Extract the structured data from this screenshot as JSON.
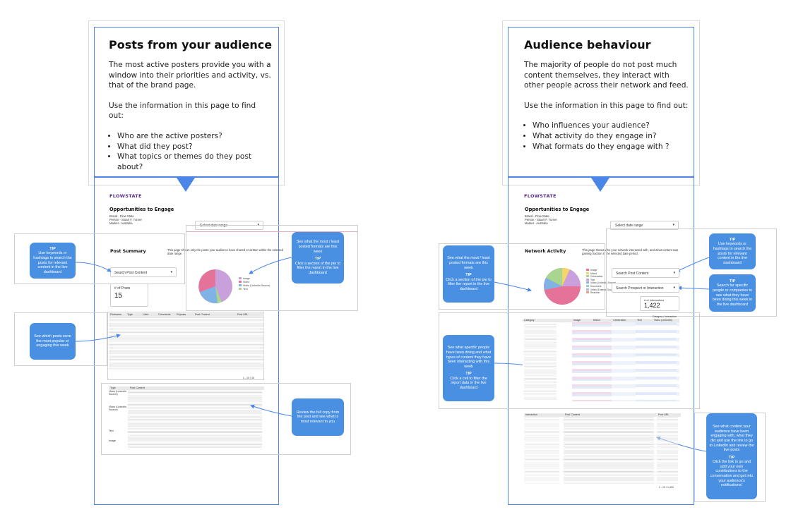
{
  "left_panel": {
    "title": "Posts from your audience",
    "paragraph1": "The most active posters provide you with a window into their priorities and activity, vs. that of the brand page.",
    "paragraph2": "Use the information in this page to find out:",
    "bullets": [
      "Who are the active posters?",
      "What did they post?",
      "What topics or themes do they post about?"
    ]
  },
  "right_panel": {
    "title": "Audience behaviour",
    "paragraph1": "The majority of people do not post much content themselves, they interact with other people across their network and feed.",
    "paragraph2": "Use the information in this page to find out:",
    "bullets": [
      "Who influences your audience?",
      "What activity do they engage in?",
      "What formats do they engage with ?"
    ]
  },
  "dashboard_common": {
    "logo": "FLOWSTATE",
    "page_title": "Opportunities to Engage",
    "brand": "Brand - Flow State",
    "person": "Person - Stuart F. Turner",
    "market": "Market - Australia",
    "date_select": "Select date range"
  },
  "left_dashboard": {
    "section_title": "Post Summary",
    "section_desc": "This page shows only the posts your audience have shared or written within the selected date range.",
    "search_placeholder": "Search Post Content",
    "kpi_label": "# of Posts",
    "kpi_value": "15",
    "legend": [
      "Image",
      "Video",
      "Video (Linkedin Source)",
      "Text"
    ],
    "table_headers": [
      "Firstname",
      "Type",
      "Likes",
      "Comments",
      "Reposts",
      "Post Content",
      "Post URL"
    ],
    "pagination": "1 - 10 / 15",
    "content_headers": [
      "Type",
      "Post Content"
    ],
    "content_types": [
      "Video (LinkedIn Source)",
      "Video (LinkedIn Source)",
      "Text",
      "Image"
    ]
  },
  "right_dashboard": {
    "section_title": "Network Activity",
    "section_desc": "This page shows who your network interacted with, and what content was gaining traction in the selected date period.",
    "search1_placeholder": "Search Post Content",
    "search2_placeholder": "Search Prospect or Interaction",
    "kpi_label": "# of interactions",
    "kpi_value": "1,422",
    "legend": [
      "Image",
      "Mixed",
      "Celebration",
      "Text",
      "Video (LinkedIn Source)",
      "Document",
      "Video (External Source)",
      "Reaction"
    ],
    "pivot_header": "Category / Interaction",
    "pivot_cols": [
      "Category",
      "Image",
      "Mixed",
      "Celebration",
      "Text",
      "Video (Linkedin)"
    ],
    "content_headers": [
      "Interaction",
      "Post Content",
      "Post URL"
    ],
    "pagination": "1 - 10 / 1,422"
  },
  "tips": {
    "tip_label": "TIP",
    "l_search": "Use keywords or hashtags to search the posts for relevant content in the live dashboard",
    "l_pie_top": "See what the most / least posted formats are this week",
    "l_pie_tip": "Click a section of the pie to filter the report in the live dashboard",
    "l_table": "See which posts were the most popular or engaging this week",
    "l_content": "Review the full copy from the post and see what is most relevant to you",
    "r_pie_top": "See what the most / least posted formats are this week",
    "r_pie_tip": "Click a section of the pie to filter the report in the live dashboard",
    "r_search": "Use keywords or hashtags to search the posts for relevant content in the live dashboard",
    "r_prospect": "Search for specific people or companies to see what they have been doing this week in the live dashboard",
    "r_pivot_top": "See what specific people have been doing and what types of content they have been interacting with this week",
    "r_pivot_tip": "Click a cell to filter the report data in the live dashboard",
    "r_content_top": "See what content your audience have been engaging with, what they did and use the link to go to LinkedIn and review the live posts",
    "r_content_tip": "Click the link to go and add your own contributions to the conversation and get into your audience's notifications!"
  },
  "colors": {
    "accent_blue": "#4a86e8",
    "tip_blue": "#4a90e2",
    "pie_pink": "#e57399",
    "pie_purple": "#c9a0dc",
    "pie_blue": "#7fb3e6",
    "pie_green": "#a8d58f",
    "pie_yellow": "#f2d56b"
  }
}
